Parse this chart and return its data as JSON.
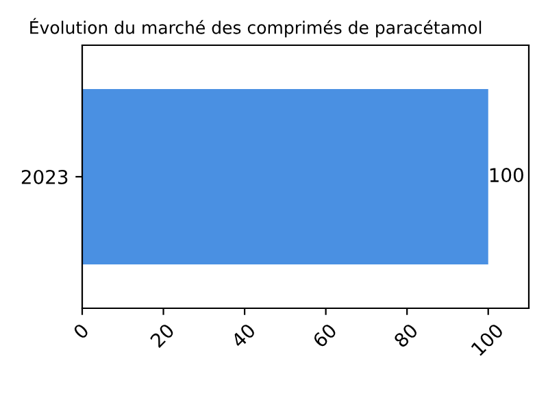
{
  "chart_data": {
    "type": "bar",
    "orientation": "horizontal",
    "title": "Évolution du marché des comprimés de paracétamol",
    "categories": [
      "2023"
    ],
    "values": [
      100
    ],
    "color": "#4a90e2",
    "value_labels": [
      "100"
    ],
    "xlim": [
      0,
      110
    ],
    "xticks": [
      0,
      20,
      40,
      60,
      80,
      100
    ],
    "grid": false
  }
}
